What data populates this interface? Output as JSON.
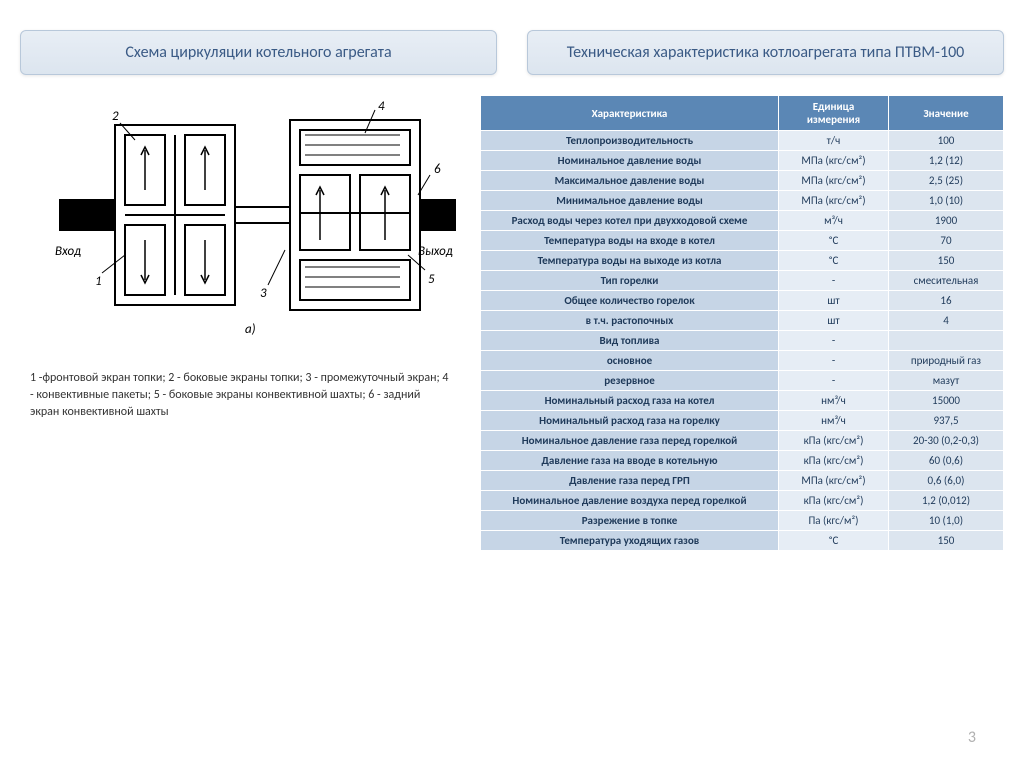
{
  "titles": {
    "left": "Схема циркуляции котельного агрегата",
    "right": "Техническая характеристика котлоагрегата типа ПТВМ-100"
  },
  "legend": "1 -фронтовой экран топки; 2 - боковые экраны топки; 3 - промежуточный экран; 4 - конвективные пакеты; 5 - боковые экраны конвективной шахты; 6 - задний экран конвективной шахты",
  "diagram": {
    "labels": {
      "in": "Вход",
      "out": "Выход",
      "a": "а)"
    },
    "callouts": [
      "1",
      "2",
      "3",
      "4",
      "5",
      "6"
    ]
  },
  "table": {
    "headers": [
      "Характеристика",
      "Единица измерения",
      "Значение"
    ],
    "rows": [
      {
        "c": "Теплопроизводительность",
        "u": "т/ч",
        "v": "100"
      },
      {
        "c": "Номинальное давление воды",
        "u": "МПа (кгс/см²)",
        "v": "1,2 (12)"
      },
      {
        "c": "Максимальное давление воды",
        "u": "МПа (кгс/см²)",
        "v": "2,5 (25)"
      },
      {
        "c": "Минимальное давление воды",
        "u": "МПа (кгс/см²)",
        "v": "1,0 (10)"
      },
      {
        "c": "Расход воды через котел при двухходовой схеме",
        "u": "м³/ч",
        "v": "1900"
      },
      {
        "c": "Температура воды на входе в котел",
        "u": "ᵒС",
        "v": "70"
      },
      {
        "c": "Температура воды на выходе из котла",
        "u": "ᵒС",
        "v": "150"
      },
      {
        "c": "Тип горелки",
        "u": "-",
        "v": "смесительная"
      },
      {
        "c": "Общее количество горелок",
        "u": "шт",
        "v": "16"
      },
      {
        "c": "в т.ч. растопочных",
        "u": "шт",
        "v": "4"
      },
      {
        "c": "Вид топлива",
        "u": "-",
        "v": ""
      },
      {
        "c": "основное",
        "u": "-",
        "v": "природный газ"
      },
      {
        "c": "резервное",
        "u": "-",
        "v": "мазут"
      },
      {
        "c": "Номинальный расход газа на котел",
        "u": "нм³/ч",
        "v": "15000"
      },
      {
        "c": "Номинальный расход газа на горелку",
        "u": "нм³/ч",
        "v": "937,5"
      },
      {
        "c": "Номинальное давление газа перед горелкой",
        "u": "кПа (кгс/см²)",
        "v": "20-30 (0,2-0,3)"
      },
      {
        "c": "Давление газа на вводе в котельную",
        "u": "кПа (кгс/см²)",
        "v": "60 (0,6)"
      },
      {
        "c": "Давление газа перед ГРП",
        "u": "МПа (кгс/см²)",
        "v": "0,6 (6,0)"
      },
      {
        "c": "Номинальное давление воздуха перед горелкой",
        "u": "кПа (кгс/см²)",
        "v": "1,2 (0,012)"
      },
      {
        "c": "Разрежение в топке",
        "u": "Па (кгс/м²)",
        "v": "10 (1,0)"
      },
      {
        "c": "Температура уходящих газов",
        "u": "ᵒС",
        "v": "150"
      }
    ]
  },
  "page": "3",
  "style": {
    "header_bg": "#5b87b5",
    "label_bg": "#c6d5e6",
    "cell_bg": "#e6edf5",
    "val_bg": "#dce5ef",
    "title_bg": "#e8eef5",
    "title_color": "#3a5a85",
    "font_size_table": 11,
    "font_size_title": 16
  }
}
